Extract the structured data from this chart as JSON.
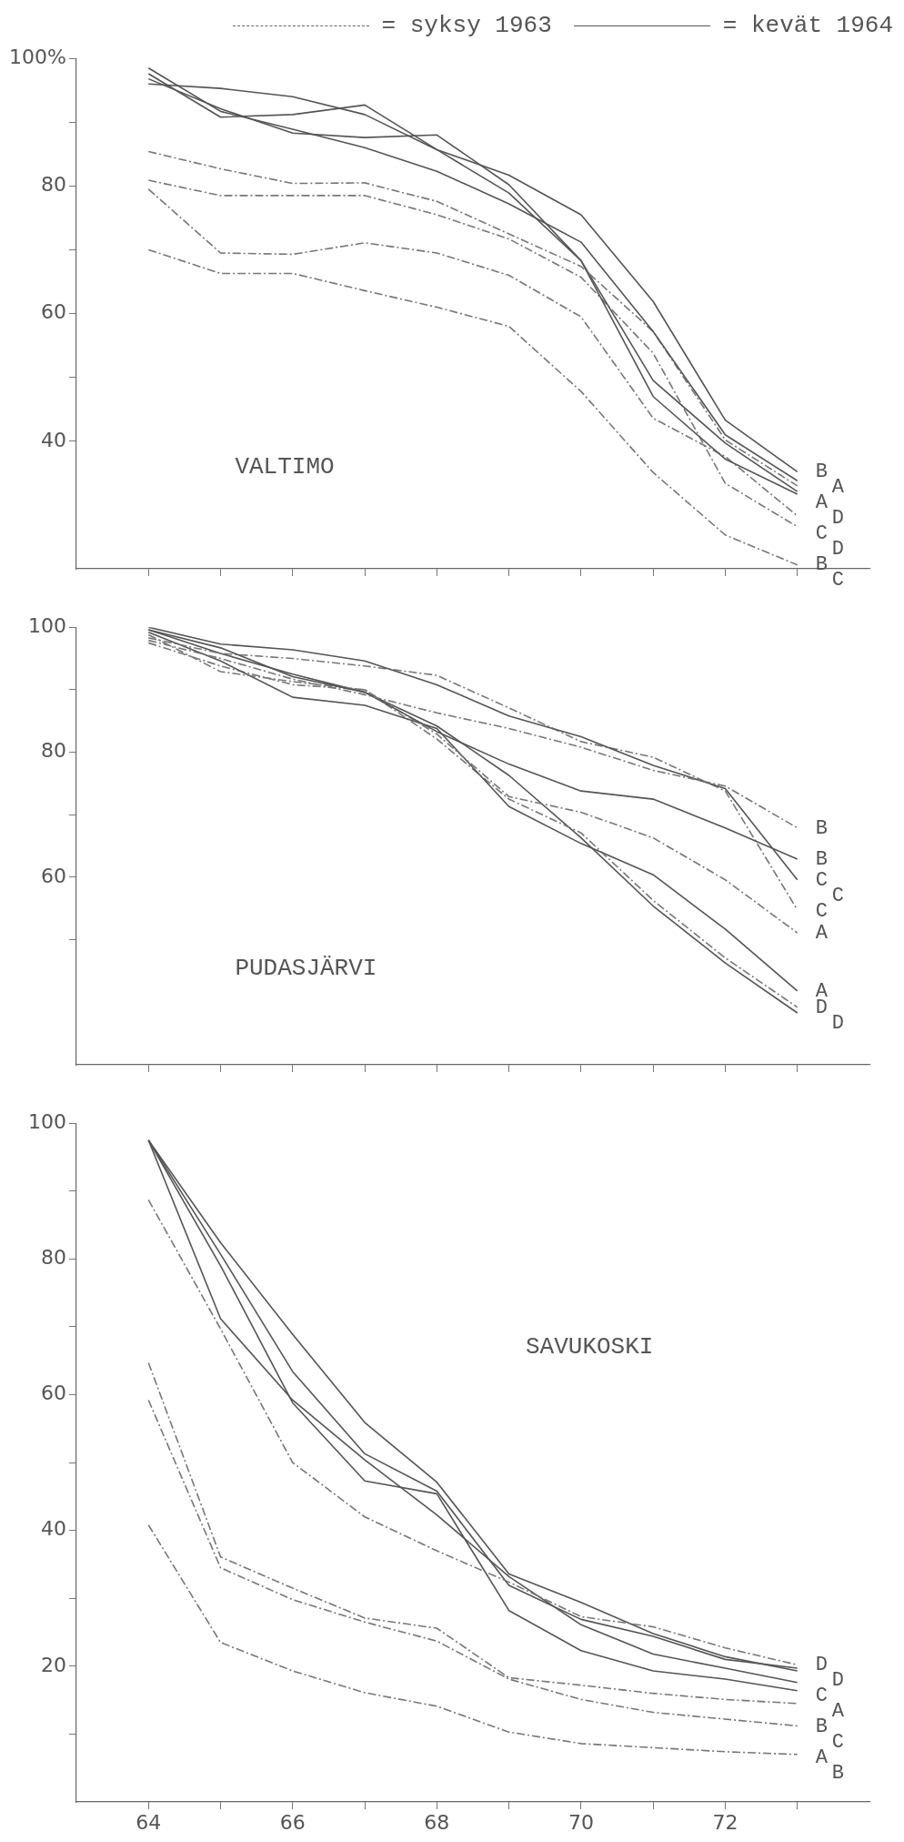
{
  "chart_data": [
    {
      "type": "line",
      "title": "VALTIMO",
      "annotations": [
        "= syksy 1963",
        "= kevät 1964"
      ],
      "x": [
        64,
        65,
        66,
        67,
        68,
        69,
        70,
        71,
        72,
        73
      ],
      "xlim": [
        63,
        74
      ],
      "xticks": [
        64,
        65,
        66,
        67,
        68,
        69,
        70,
        71,
        72,
        73
      ],
      "ylim": [
        20,
        100
      ],
      "yticks": [
        {
          "value": 40,
          "label": "40"
        },
        {
          "value": 50,
          "label": null
        },
        {
          "value": 60,
          "label": "60"
        },
        {
          "value": 70,
          "label": null
        },
        {
          "value": 80,
          "label": "80"
        },
        {
          "value": 90,
          "label": null
        },
        {
          "value": 100,
          "label": "100%"
        }
      ],
      "tick_labels": "y",
      "series": [
        {
          "name": "B",
          "color": "#555555",
          "line_style": "solid",
          "values": [
            96,
            95.3,
            94,
            91.2,
            85.7,
            81.7,
            75.5,
            61.9,
            43.3,
            35.2
          ]
        },
        {
          "name": "A",
          "color": "#555555",
          "line_style": "solid",
          "values": [
            98.5,
            91.7,
            88.9,
            86,
            82.3,
            77.2,
            71.2,
            57.2,
            41,
            33.8
          ]
        },
        {
          "name": "A",
          "color": "#777777",
          "line_style": "dashed",
          "values": [
            85.4,
            82.7,
            80.4,
            80.5,
            77.6,
            72.5,
            67.4,
            57.2,
            40.2,
            33
          ]
        },
        {
          "name": "D",
          "color": "#555555",
          "line_style": "solid",
          "values": [
            97.6,
            90.8,
            91.2,
            92.7,
            85.7,
            78.9,
            68.3,
            49.5,
            39.7,
            32.1
          ]
        },
        {
          "name": "C",
          "color": "#555555",
          "line_style": "solid",
          "values": [
            96.8,
            92.1,
            88.3,
            87.6,
            88,
            80.2,
            68.3,
            47,
            37.2,
            31.7
          ]
        },
        {
          "name": "D",
          "color": "#777777",
          "line_style": "dashed",
          "values": [
            79.5,
            69.5,
            69.3,
            71.1,
            69.5,
            66,
            59.5,
            43.6,
            37.6,
            28.3
          ]
        },
        {
          "name": "B",
          "color": "#777777",
          "line_style": "dashed",
          "values": [
            80.9,
            78.5,
            78.5,
            78.5,
            75.5,
            71.7,
            65.7,
            53.8,
            33.4,
            26.6
          ]
        },
        {
          "name": "C",
          "color": "#777777",
          "line_style": "dashed",
          "values": [
            70,
            66.3,
            66.3,
            63.6,
            61,
            58,
            47.8,
            35.1,
            25.3,
            20.6
          ]
        }
      ]
    },
    {
      "type": "line",
      "title": "PUDASJÄRVI",
      "annotations": [
        "C"
      ],
      "x": [
        64,
        65,
        66,
        67,
        68,
        69,
        70,
        71,
        72,
        73
      ],
      "xlim": [
        63,
        74
      ],
      "xticks": [
        64,
        65,
        66,
        67,
        68,
        69,
        70,
        71,
        72,
        73
      ],
      "ylim": [
        30,
        100
      ],
      "yticks": [
        {
          "value": 50,
          "label": null
        },
        60,
        {
          "value": 70,
          "label": null
        },
        80,
        {
          "value": 90,
          "label": null
        },
        100
      ],
      "tick_labels": "y",
      "series": [
        {
          "name": "B",
          "color": "#777777",
          "line_style": "dashed",
          "values": [
            97.9,
            95,
            91.7,
            89.2,
            86.3,
            83.8,
            80.8,
            77.1,
            74.6,
            67.9
          ]
        },
        {
          "name": "B",
          "color": "#555555",
          "line_style": "solid",
          "values": [
            99.6,
            96.7,
            92.1,
            89.6,
            83.3,
            78.1,
            73.8,
            72.5,
            67.9,
            62.9
          ]
        },
        {
          "name": "C",
          "color": "#555555",
          "line_style": "solid",
          "values": [
            100,
            97.3,
            96.4,
            94.6,
            90.8,
            85.8,
            82.5,
            77.9,
            74.2,
            59.6
          ]
        },
        {
          "name": "C",
          "color": "#777777",
          "line_style": "dashed",
          "values": [
            98.3,
            95.8,
            95,
            93.8,
            92.3,
            87.1,
            81.7,
            79.2,
            73.8,
            54.8
          ]
        },
        {
          "name": "A",
          "color": "#777777",
          "line_style": "dashed",
          "values": [
            98.8,
            92.9,
            91.3,
            90,
            82.9,
            72.9,
            70.4,
            66.3,
            59.6,
            51.1
          ]
        },
        {
          "name": "A",
          "color": "#555555",
          "line_style": "solid",
          "values": [
            99.2,
            94.6,
            88.8,
            87.5,
            83.8,
            71.3,
            65.4,
            60.4,
            51.7,
            41.8
          ]
        },
        {
          "name": "D",
          "color": "#777777",
          "line_style": "dashed",
          "values": [
            97.5,
            93.8,
            90.8,
            90,
            82.1,
            72.5,
            67.1,
            56.3,
            47.1,
            39.2
          ]
        },
        {
          "name": "D",
          "color": "#555555",
          "line_style": "solid",
          "values": [
            99.6,
            95.8,
            92.5,
            89.6,
            84.2,
            76.3,
            66.3,
            55.4,
            46.3,
            38.3
          ]
        }
      ]
    },
    {
      "type": "line",
      "title": "SAVUKOSKI",
      "x": [
        64,
        65,
        66,
        67,
        68,
        69,
        70,
        71,
        72,
        73
      ],
      "xlim": [
        63,
        74
      ],
      "xticks": [
        64,
        {
          "value": 65,
          "label": null
        },
        66,
        {
          "value": 67,
          "label": null
        },
        68,
        {
          "value": 69,
          "label": null
        },
        70,
        {
          "value": 71,
          "label": null
        },
        72,
        {
          "value": 73,
          "label": null
        }
      ],
      "ylim": [
        0,
        100
      ],
      "yticks": [
        {
          "value": 10,
          "label": null
        },
        20,
        {
          "value": 30,
          "label": null
        },
        40,
        {
          "value": 50,
          "label": null
        },
        60,
        {
          "value": 70,
          "label": null
        },
        80,
        {
          "value": 90,
          "label": null
        },
        100
      ],
      "series": [
        {
          "name": "D",
          "color": "#777777",
          "line_style": "dashed",
          "values": [
            88.7,
            69.7,
            50,
            42,
            37,
            32.4,
            27.3,
            25.8,
            22.7,
            20.2
          ]
        },
        {
          "name": "D",
          "color": "#555555",
          "line_style": "solid",
          "values": [
            97.5,
            80.7,
            63.4,
            51.3,
            45.8,
            31.9,
            26.9,
            24.4,
            21,
            19.7
          ]
        },
        {
          "name": "C",
          "color": "#555555",
          "line_style": "solid",
          "values": [
            97.5,
            82.4,
            68.9,
            55.9,
            47.1,
            33.6,
            29.4,
            24.8,
            21.4,
            19.3
          ]
        },
        {
          "name": "A",
          "color": "#555555",
          "line_style": "solid",
          "values": [
            97.5,
            71.2,
            59.2,
            50.4,
            42.3,
            33.2,
            26.1,
            21.8,
            19.7,
            17.6
          ]
        },
        {
          "name": "B",
          "color": "#555555",
          "line_style": "solid",
          "values": [
            97.5,
            79,
            58.8,
            47.3,
            45.4,
            28.2,
            22.3,
            19.3,
            18.1,
            16.4
          ]
        },
        {
          "name": "C",
          "color": "#777777",
          "line_style": "dashed",
          "values": [
            64.7,
            36.1,
            31.5,
            27.1,
            25.6,
            18.3,
            17.2,
            16,
            15.1,
            14.5
          ]
        },
        {
          "name": "A",
          "color": "#777777",
          "line_style": "dashed",
          "values": [
            59.2,
            34.5,
            29.8,
            26.5,
            23.7,
            18.1,
            15.1,
            13.2,
            12.2,
            11.2
          ]
        },
        {
          "name": "B",
          "color": "#777777",
          "line_style": "dashed",
          "values": [
            40.8,
            23.5,
            19.3,
            16.1,
            14.1,
            10.3,
            8.6,
            8,
            7.4,
            7
          ]
        }
      ]
    }
  ]
}
